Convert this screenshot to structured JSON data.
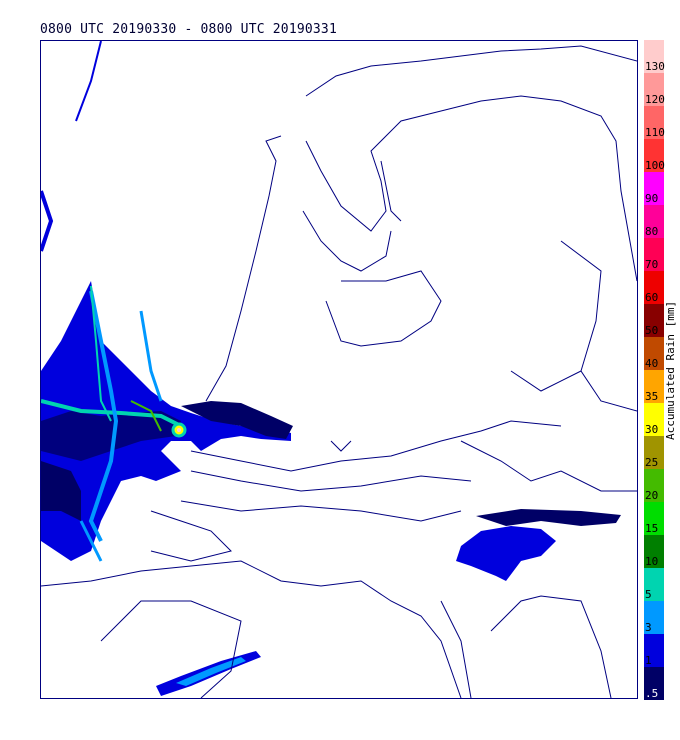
{
  "title": "0800 UTC 20190330 - 0800 UTC 20190331",
  "colorbar": {
    "label": "Accumulated Rain [mm]",
    "bins": [
      {
        "label": "130",
        "color": "#ffcccc"
      },
      {
        "label": "120",
        "color": "#ff9999"
      },
      {
        "label": "110",
        "color": "#ff6666"
      },
      {
        "label": "100",
        "color": "#ff3333"
      },
      {
        "label": "90",
        "color": "#ff00ff"
      },
      {
        "label": "80",
        "color": "#ff0099"
      },
      {
        "label": "70",
        "color": "#ff0055"
      },
      {
        "label": "60",
        "color": "#ee0000"
      },
      {
        "label": "50",
        "color": "#880000"
      },
      {
        "label": "40",
        "color": "#c04a00"
      },
      {
        "label": "35",
        "color": "#ffa500"
      },
      {
        "label": "30",
        "color": "#ffff00"
      },
      {
        "label": "25",
        "color": "#a09400"
      },
      {
        "label": "20",
        "color": "#44bb00"
      },
      {
        "label": "15",
        "color": "#00dd00"
      },
      {
        "label": "10",
        "color": "#007f00"
      },
      {
        "label": "5",
        "color": "#00d4b0"
      },
      {
        "label": "3",
        "color": "#0099ff"
      },
      {
        "label": "1",
        "color": "#0000dd"
      },
      {
        "label": ".5",
        "color": "#000066"
      }
    ]
  },
  "colors": {
    "border": "#000080"
  }
}
